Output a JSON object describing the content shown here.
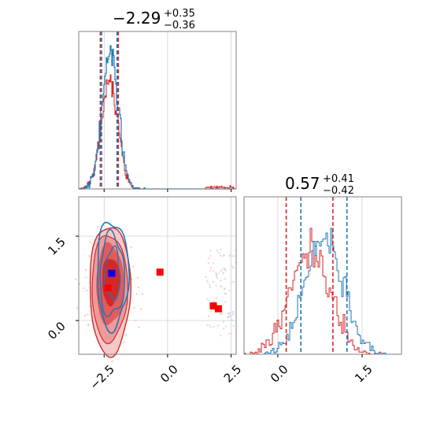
{
  "chart_data": {
    "type": "corner",
    "parameters": [
      "param_1",
      "param_2"
    ],
    "colors": {
      "primary": "#d62728",
      "secondary": "#1f77b4",
      "marker_truth": "#0000ff"
    },
    "titles": [
      {
        "median": "−2.29",
        "upper": "+0.35",
        "lower": "−0.36"
      },
      {
        "median": "0.57",
        "upper": "+0.41",
        "lower": "−0.42"
      }
    ],
    "axes": {
      "x1": {
        "range": [
          -3.5,
          2.7
        ],
        "ticks": [
          -2.5,
          0.0,
          2.5
        ],
        "tick_labels": [
          "−2.5",
          "0.0",
          "2.5"
        ]
      },
      "x2": {
        "range": [
          -0.6,
          2.2
        ],
        "ticks": [
          0.0,
          1.5
        ],
        "tick_labels": [
          "0.0",
          "1.5"
        ]
      },
      "y2": {
        "range": [
          -0.6,
          2.2
        ],
        "ticks": [
          0.0,
          1.5
        ],
        "tick_labels": [
          "0.0",
          "1.5"
        ]
      }
    },
    "grid": true,
    "hist1": {
      "quantiles_red": [
        -2.65,
        -1.94
      ],
      "quantiles_blue": [
        -2.6,
        -1.99
      ],
      "center": -2.29,
      "sigma": 0.33
    },
    "hist2": {
      "quantiles_red": [
        0.15,
        0.98
      ],
      "quantiles_blue": [
        0.41,
        1.23
      ],
      "center_red": 0.57,
      "sigma_red": 0.35,
      "center_blue": 0.82,
      "sigma_blue": 0.33
    },
    "markers_red": [
      {
        "x": -2.35,
        "y": 0.58
      },
      {
        "x": -0.3,
        "y": 0.86
      },
      {
        "x": 1.8,
        "y": 0.26
      },
      {
        "x": 2.0,
        "y": 0.21
      }
    ],
    "marker_blue": {
      "x": -2.2,
      "y": 0.84
    },
    "contour_center": {
      "x": -2.29,
      "y": 0.6
    }
  }
}
